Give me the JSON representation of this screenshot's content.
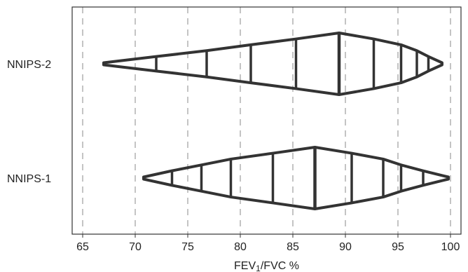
{
  "chart_data": {
    "type": "letter-value",
    "orientation": "horizontal",
    "xlabel": "FEV",
    "xlabel_sub": "1",
    "xlabel_tail": "/FVC %",
    "xlim": [
      64,
      101
    ],
    "xticks": [
      65,
      70,
      75,
      80,
      85,
      90,
      95,
      100
    ],
    "xtick_labels": [
      "65",
      "70",
      "75",
      "80",
      "85",
      "90",
      "95",
      "100"
    ],
    "grid": "vertical-dashed",
    "categories": [
      "NNIPS-2",
      "NNIPS-1"
    ],
    "series": [
      {
        "name": "NNIPS-2",
        "median": 89.4,
        "letter_values": [
          {
            "lower": 85.3,
            "upper": 92.7
          },
          {
            "lower": 81.0,
            "upper": 95.3
          },
          {
            "lower": 76.8,
            "upper": 96.8
          },
          {
            "lower": 72.0,
            "upper": 97.9
          },
          {
            "lower": 67.0,
            "upper": 99.2
          }
        ]
      },
      {
        "name": "NNIPS-1",
        "median": 87.1,
        "letter_values": [
          {
            "lower": 83.1,
            "upper": 90.6
          },
          {
            "lower": 79.1,
            "upper": 93.6
          },
          {
            "lower": 76.3,
            "upper": 95.3
          },
          {
            "lower": 73.5,
            "upper": 97.4
          },
          {
            "lower": 70.8,
            "upper": 99.8
          }
        ]
      }
    ]
  }
}
